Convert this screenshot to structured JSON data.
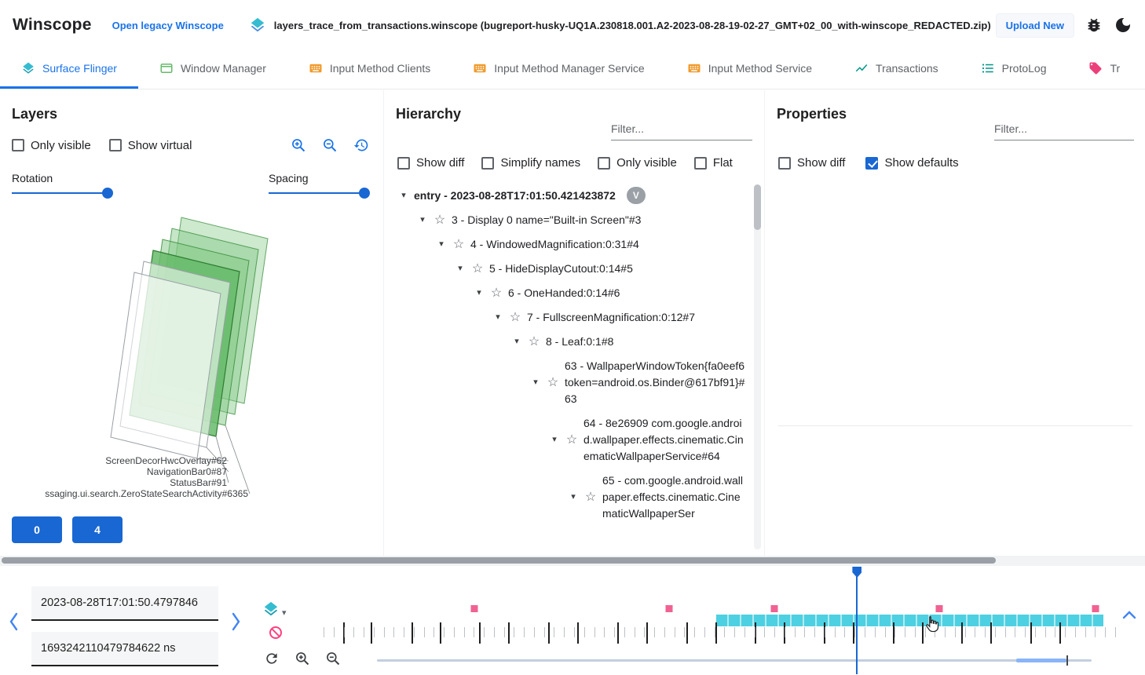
{
  "header": {
    "app_title": "Winscope",
    "legacy_link": "Open legacy Winscope",
    "trace_file": "layers_trace_from_transactions.winscope (bugreport-husky-UQ1A.230818.001.A2-2023-08-28-19-02-27_GMT+02_00_with-winscope_REDACTED.zip)",
    "upload_button": "Upload New"
  },
  "tabs": [
    {
      "label": "Surface Flinger",
      "icon": "layers-icon",
      "active": true
    },
    {
      "label": "Window Manager",
      "icon": "window-icon",
      "active": false
    },
    {
      "label": "Input Method Clients",
      "icon": "keyboard-icon",
      "active": false
    },
    {
      "label": "Input Method Manager Service",
      "icon": "keyboard-icon",
      "active": false
    },
    {
      "label": "Input Method Service",
      "icon": "keyboard-icon",
      "active": false
    },
    {
      "label": "Transactions",
      "icon": "chart-icon",
      "active": false
    },
    {
      "label": "ProtoLog",
      "icon": "list-icon",
      "active": false
    },
    {
      "label": "Tr",
      "icon": "tag-icon",
      "active": false
    }
  ],
  "layers_panel": {
    "title": "Layers",
    "checkboxes": [
      {
        "label": "Only visible",
        "checked": false
      },
      {
        "label": "Show virtual",
        "checked": false
      }
    ],
    "sliders": {
      "rotation_label": "Rotation",
      "rotation_value_pct": 97,
      "spacing_label": "Spacing",
      "spacing_value_pct": 97
    },
    "layer_labels": [
      "ScreenDecorHwcOverlay#62",
      "NavigationBar0#87",
      "StatusBar#91",
      "ssaging.ui.search.ZeroStateSearchActivity#6365"
    ],
    "display_buttons": [
      "0",
      "4"
    ]
  },
  "hierarchy_panel": {
    "title": "Hierarchy",
    "filter_placeholder": "Filter...",
    "checkboxes": [
      {
        "label": "Show diff",
        "checked": false
      },
      {
        "label": "Simplify names",
        "checked": false
      },
      {
        "label": "Only visible",
        "checked": false
      },
      {
        "label": "Flat",
        "checked": false
      }
    ],
    "entry": {
      "label": "entry - 2023-08-28T17:01:50.421423872",
      "badge": "V"
    },
    "tree": [
      {
        "label": "3 - Display 0 name=\"Built-in Screen\"#3",
        "depth": 1
      },
      {
        "label": "4 - WindowedMagnification:0:31#4",
        "depth": 2
      },
      {
        "label": "5 - HideDisplayCutout:0:14#5",
        "depth": 3
      },
      {
        "label": "6 - OneHanded:0:14#6",
        "depth": 4
      },
      {
        "label": "7 - FullscreenMagnification:0:12#7",
        "depth": 5
      },
      {
        "label": "8 - Leaf:0:1#8",
        "depth": 6
      },
      {
        "label": "63 - WallpaperWindowToken{fa0eef6 token=android.os.Binder@617bf91}#63",
        "depth": 7
      },
      {
        "label": "64 - 8e26909 com.google.android.wallpaper.effects.cinematic.CinematicWallpaperService#64",
        "depth": 8
      },
      {
        "label": "65 - com.google.android.wallpaper.effects.cinematic.CinematicWallpaperSer",
        "depth": 9
      }
    ]
  },
  "properties_panel": {
    "title": "Properties",
    "filter_placeholder": "Filter...",
    "checkboxes": [
      {
        "label": "Show diff",
        "checked": false
      },
      {
        "label": "Show defaults",
        "checked": true
      }
    ]
  },
  "timeline": {
    "timestamp_human": "2023-08-28T17:01:50.4797846",
    "timestamp_ns": "1693242110479784622 ns",
    "ruler_tick_count": 80,
    "cursor_pct": 67.3,
    "pink_markers_pct": [
      19.0,
      43.7,
      56.9,
      77.8,
      97.5
    ],
    "cyan_band": {
      "start_pct": 49.6,
      "end_pct": 98.5
    },
    "event_marks_pct": [
      2.5,
      6.0,
      11.1,
      14.7,
      19.6,
      23.3,
      28.4,
      32.0,
      37.1,
      40.8,
      45.8,
      49.5,
      54.5,
      58.1,
      63.2,
      66.9,
      71.9,
      75.6,
      80.6,
      84.2,
      89.3,
      93.0
    ],
    "zoom_range": {
      "start_pct": 89.5,
      "end_pct": 96.5
    }
  },
  "colors": {
    "accent_blue": "#1967d2",
    "link_blue": "#1a73e8",
    "teal": "#35bcd1",
    "orange": "#f09b2d",
    "pink": "#f06292",
    "cyan_band": "#4dd0e1",
    "layer_green": "#66bb6a"
  }
}
